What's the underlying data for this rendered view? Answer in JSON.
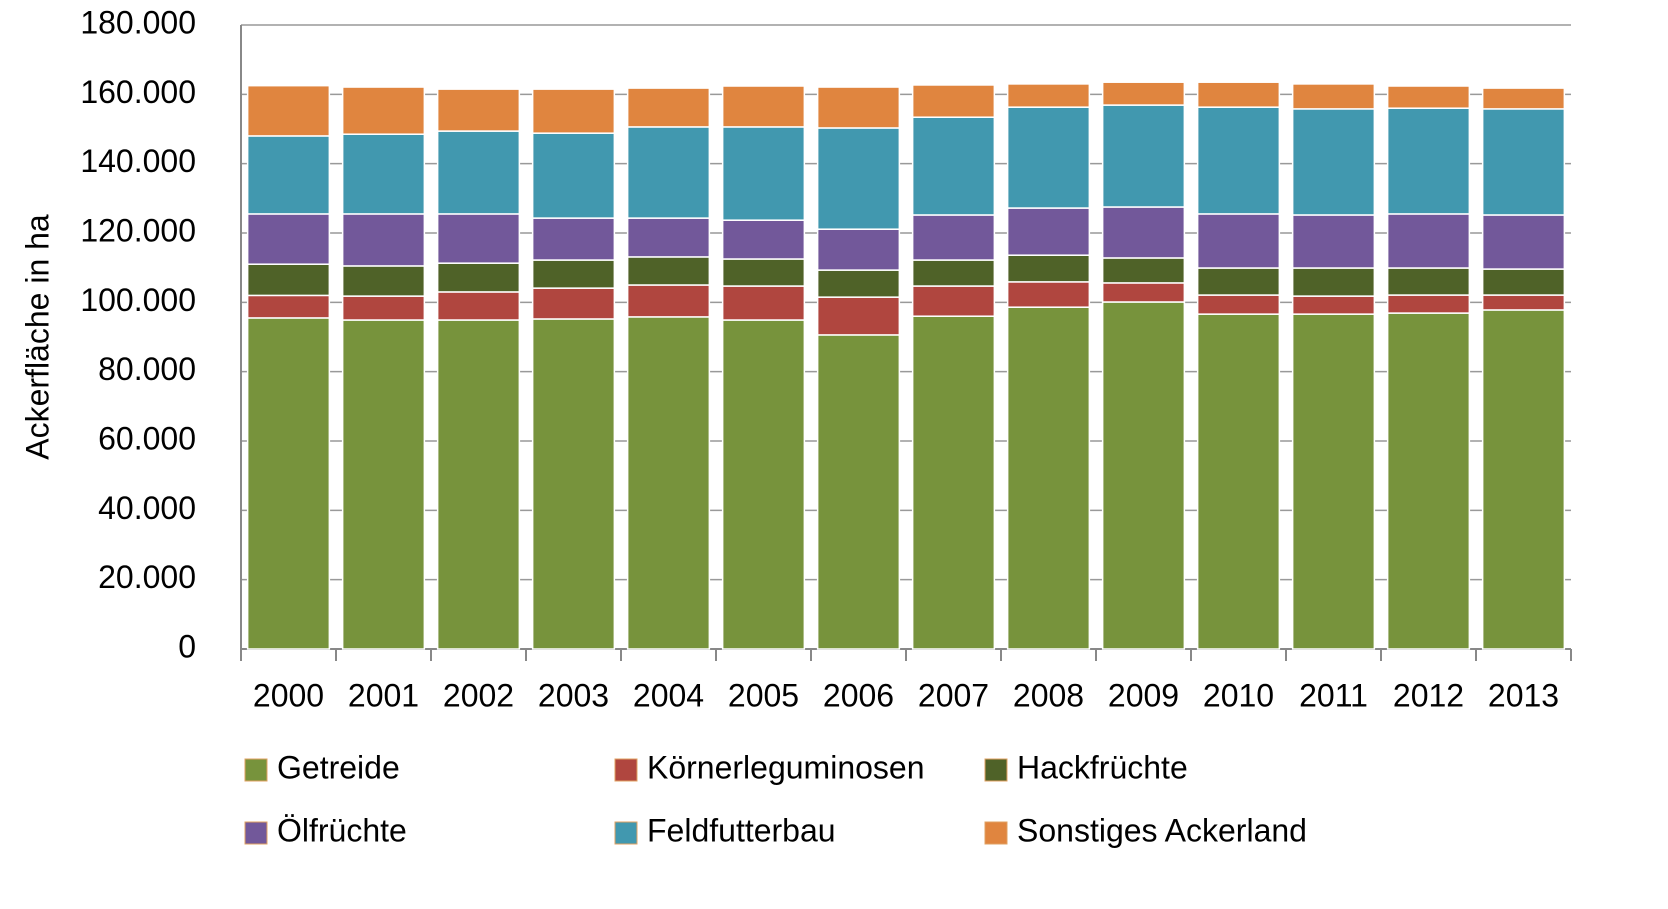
{
  "chart_data": {
    "type": "stacked-bar",
    "ylabel": "Ackerfläche in ha",
    "categories": [
      "2000",
      "2001",
      "2002",
      "2003",
      "2004",
      "2005",
      "2006",
      "2007",
      "2008",
      "2009",
      "2010",
      "2011",
      "2012",
      "2013"
    ],
    "series": [
      {
        "name": "Getreide",
        "color": "#77933c",
        "values": [
          95500,
          94900,
          94900,
          95200,
          95800,
          94900,
          90600,
          96000,
          98600,
          100100,
          96600,
          96600,
          96900,
          97800
        ]
      },
      {
        "name": "Körnerleguminosen",
        "color": "#b0463f",
        "values": [
          6500,
          6900,
          8100,
          8900,
          9200,
          9800,
          10900,
          8700,
          7300,
          5500,
          5500,
          5200,
          5200,
          4300
        ]
      },
      {
        "name": "Hackfrüchte",
        "color": "#4f6228",
        "values": [
          9000,
          8700,
          8300,
          8100,
          8100,
          7800,
          7800,
          7500,
          7700,
          7200,
          7800,
          8100,
          7800,
          7500
        ]
      },
      {
        "name": "Ölfrüchte",
        "color": "#72589a",
        "values": [
          14500,
          15000,
          14200,
          12100,
          11200,
          11200,
          11800,
          13000,
          13600,
          14700,
          15600,
          15300,
          15600,
          15600
        ]
      },
      {
        "name": "Feldfutterbau",
        "color": "#4198af",
        "values": [
          22500,
          23000,
          23900,
          24500,
          26300,
          26900,
          29200,
          28200,
          29100,
          29400,
          30800,
          30600,
          30500,
          30600
        ]
      },
      {
        "name": "Sonstiges Ackerland",
        "color": "#e0853f",
        "values": [
          14500,
          13600,
          12100,
          12700,
          11200,
          11800,
          11800,
          9300,
          6700,
          6600,
          7200,
          7200,
          6400,
          6000
        ]
      }
    ],
    "ylim": [
      0,
      180000
    ],
    "yticks": [
      0,
      {
        "value": 20000,
        "label": "20.000"
      },
      {
        "value": 40000,
        "label": "40.000"
      },
      {
        "value": 60000,
        "label": "60.000"
      },
      {
        "value": 80000,
        "label": "80.000"
      },
      {
        "value": 100000,
        "label": "100.000"
      },
      {
        "value": 120000,
        "label": "120.000"
      },
      {
        "value": 140000,
        "label": "140.000"
      },
      {
        "value": 160000,
        "label": "160.000"
      },
      {
        "value": 180000,
        "label": "180.000"
      }
    ],
    "grid": true
  }
}
